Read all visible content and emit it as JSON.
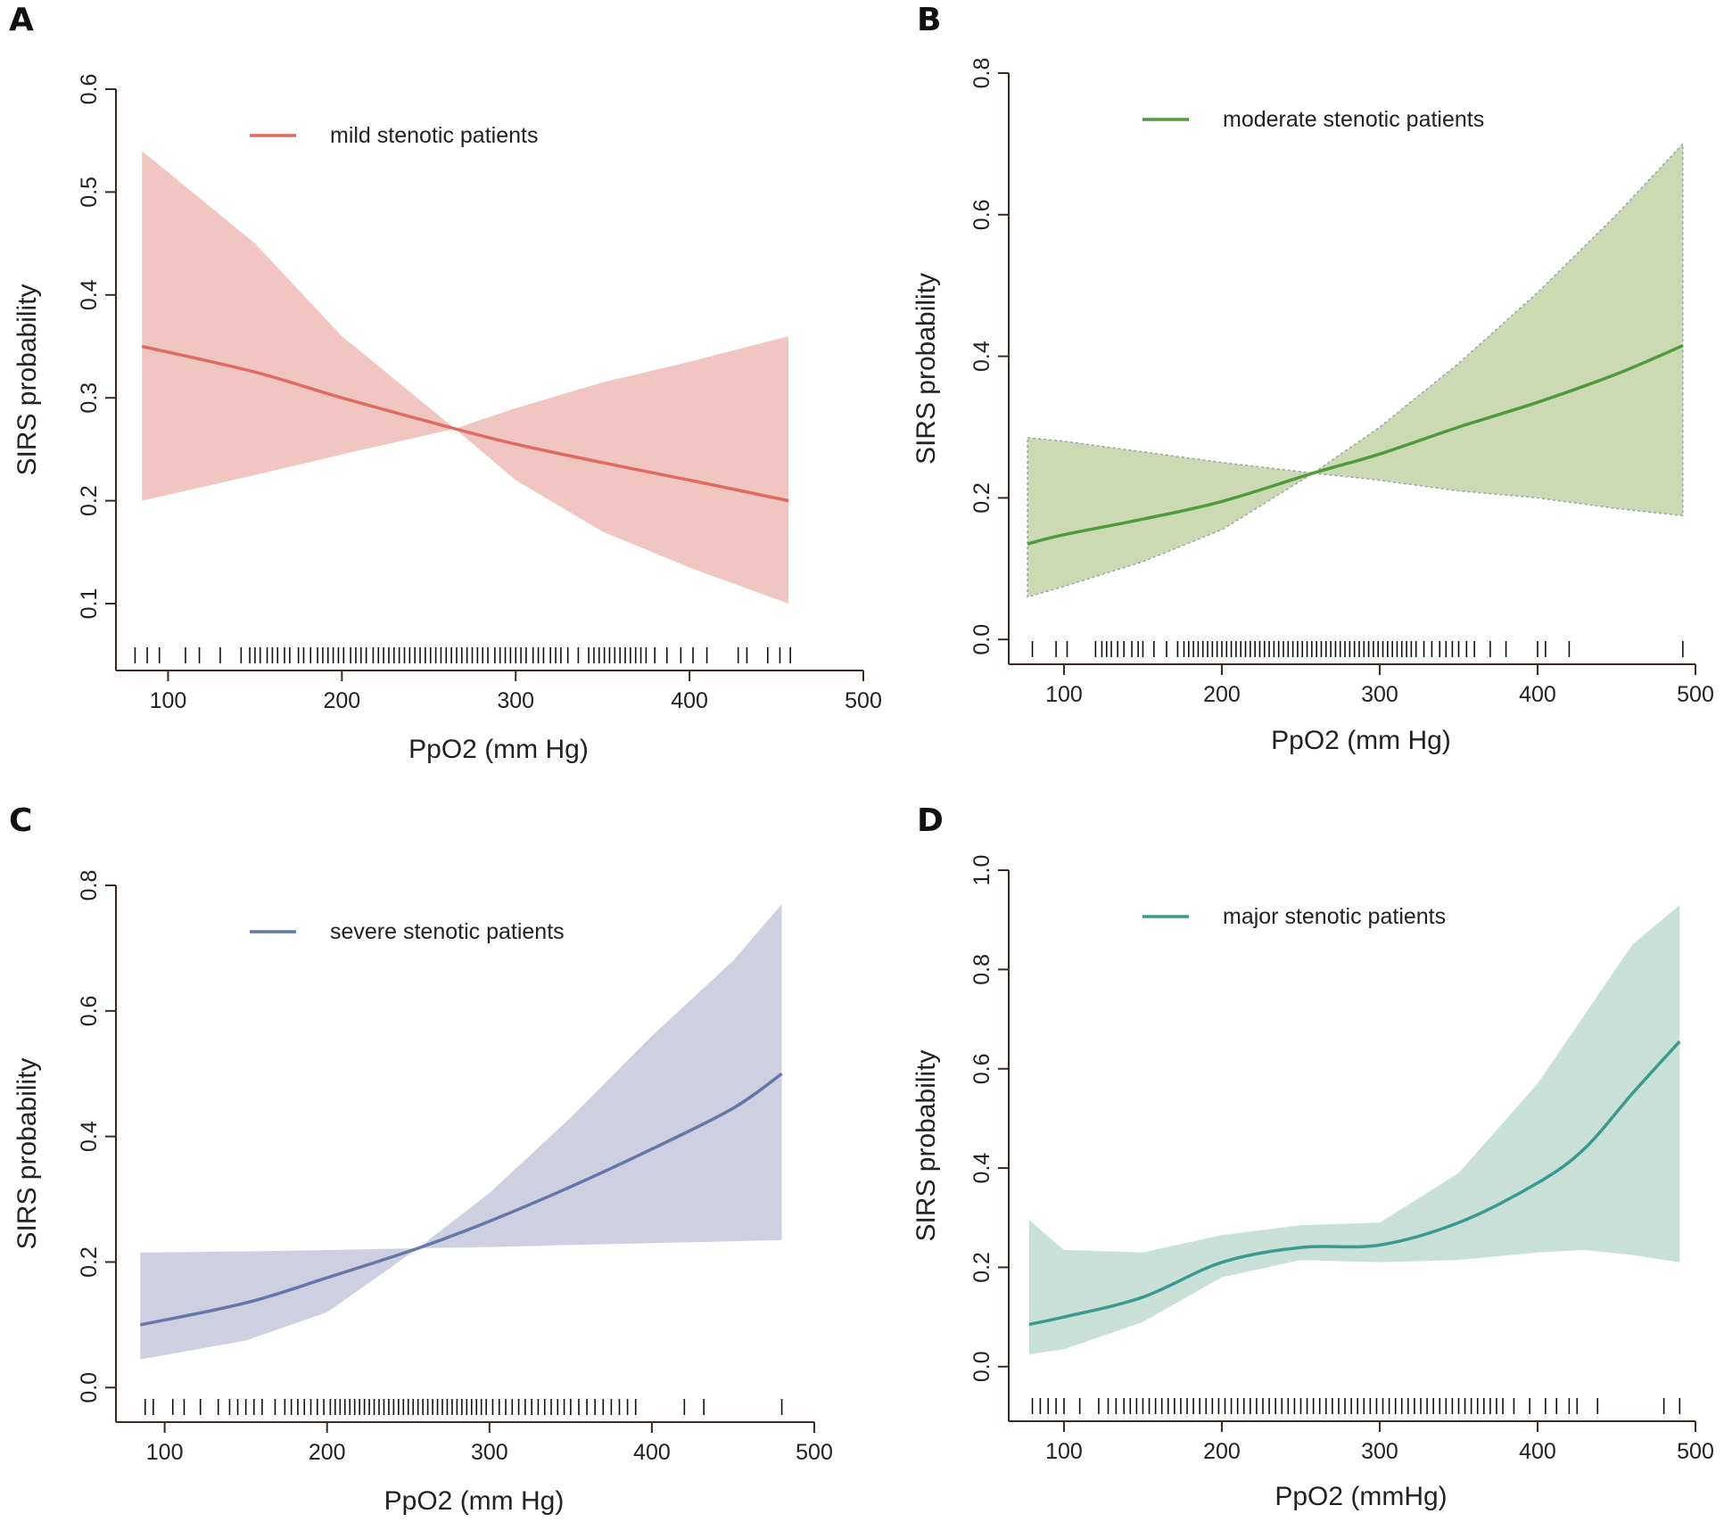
{
  "chart_data": [
    {
      "panel": "A",
      "type": "line",
      "title": "",
      "xlabel": "PpO2 (mm Hg)",
      "ylabel": "SIRS probability",
      "xlim": [
        70,
        500
      ],
      "ylim": [
        0.035,
        0.6
      ],
      "xticks": [
        "100",
        "200",
        "300",
        "400",
        "500"
      ],
      "yticks": [
        "0.1",
        "0.2",
        "0.3",
        "0.4",
        "0.5",
        "0.6"
      ],
      "legend": "mild stenotic patients",
      "legend_position": "top",
      "line_color": "#e06a60",
      "band_color": "#f2c6c0",
      "band_dashed": false,
      "series": [
        {
          "name": "mild stenotic patients",
          "x": [
            85,
            150,
            200,
            265,
            300,
            350,
            400,
            457
          ],
          "values": [
            0.35,
            0.325,
            0.3,
            0.27,
            0.255,
            0.237,
            0.22,
            0.2
          ],
          "lower": [
            0.2,
            0.225,
            0.245,
            0.27,
            0.22,
            0.17,
            0.135,
            0.1
          ],
          "upper": [
            0.54,
            0.45,
            0.36,
            0.27,
            0.29,
            0.315,
            0.335,
            0.36
          ]
        }
      ],
      "rug": [
        81,
        88,
        95,
        110,
        118,
        130,
        142,
        147,
        150,
        153,
        157,
        160,
        163,
        167,
        170,
        175,
        178,
        182,
        186,
        189,
        192,
        195,
        198,
        201,
        205,
        208,
        211,
        214,
        218,
        221,
        224,
        227,
        230,
        233,
        236,
        239,
        242,
        245,
        248,
        251,
        254,
        257,
        260,
        263,
        266,
        269,
        272,
        275,
        278,
        281,
        284,
        288,
        291,
        294,
        297,
        300,
        303,
        306,
        310,
        313,
        316,
        320,
        323,
        326,
        330,
        336,
        342,
        345,
        348,
        351,
        354,
        357,
        360,
        363,
        366,
        369,
        372,
        375,
        380,
        387,
        395,
        402,
        410,
        428,
        433,
        445,
        452,
        458
      ]
    },
    {
      "panel": "B",
      "type": "line",
      "title": "",
      "xlabel": "PpO2 (mm Hg)",
      "ylabel": "SIRS probability",
      "xlim": [
        65,
        500
      ],
      "ylim": [
        -0.035,
        0.8
      ],
      "xticks": [
        "100",
        "200",
        "300",
        "400",
        "500"
      ],
      "yticks": [
        "0.0",
        "0.2",
        "0.4",
        "0.6",
        "0.8"
      ],
      "legend": "moderate stenotic patients",
      "legend_position": "top-left",
      "line_color": "#4e9a3d",
      "band_color": "#cbdab3",
      "band_dashed": true,
      "series": [
        {
          "name": "moderate stenotic patients",
          "x": [
            77,
            100,
            150,
            200,
            258,
            300,
            350,
            400,
            450,
            492
          ],
          "values": [
            0.135,
            0.148,
            0.17,
            0.195,
            0.235,
            0.262,
            0.3,
            0.335,
            0.375,
            0.415
          ],
          "lower": [
            0.06,
            0.075,
            0.11,
            0.155,
            0.235,
            0.225,
            0.21,
            0.2,
            0.185,
            0.175
          ],
          "upper": [
            0.285,
            0.28,
            0.265,
            0.25,
            0.235,
            0.3,
            0.39,
            0.49,
            0.6,
            0.7
          ]
        }
      ],
      "rug": [
        80,
        95,
        102,
        120,
        124,
        127,
        130,
        134,
        138,
        143,
        147,
        150,
        157,
        165,
        172,
        176,
        179,
        182,
        185,
        188,
        191,
        194,
        197,
        200,
        203,
        206,
        209,
        212,
        215,
        218,
        221,
        224,
        227,
        230,
        233,
        236,
        239,
        242,
        245,
        248,
        251,
        254,
        257,
        260,
        263,
        266,
        269,
        272,
        275,
        278,
        281,
        284,
        287,
        290,
        293,
        296,
        299,
        302,
        305,
        308,
        311,
        314,
        317,
        320,
        323,
        328,
        333,
        338,
        342,
        346,
        350,
        355,
        360,
        370,
        380,
        400,
        405,
        420,
        492
      ]
    },
    {
      "panel": "C",
      "type": "line",
      "title": "",
      "xlabel": "PpO2 (mm Hg)",
      "ylabel": "SIRS probability",
      "xlim": [
        70,
        500
      ],
      "ylim": [
        -0.055,
        0.8
      ],
      "xticks": [
        "100",
        "200",
        "300",
        "400",
        "500"
      ],
      "yticks": [
        "0.0",
        "0.2",
        "0.4",
        "0.6",
        "0.8"
      ],
      "legend": "severe stenotic patients",
      "legend_position": "top-left",
      "line_color": "#6477ab",
      "band_color": "#cfcfe2",
      "band_dashed": false,
      "series": [
        {
          "name": "severe stenotic patients",
          "x": [
            85,
            150,
            200,
            256,
            300,
            350,
            400,
            450,
            480
          ],
          "values": [
            0.1,
            0.135,
            0.175,
            0.222,
            0.265,
            0.32,
            0.38,
            0.445,
            0.5
          ],
          "lower": [
            0.045,
            0.075,
            0.12,
            0.222,
            0.224,
            0.227,
            0.23,
            0.233,
            0.235
          ],
          "upper": [
            0.215,
            0.217,
            0.219,
            0.222,
            0.31,
            0.43,
            0.56,
            0.68,
            0.77
          ]
        }
      ],
      "rug": [
        88,
        93,
        105,
        112,
        122,
        133,
        140,
        145,
        150,
        155,
        160,
        168,
        174,
        178,
        182,
        186,
        190,
        194,
        198,
        202,
        205,
        208,
        211,
        214,
        217,
        220,
        223,
        226,
        229,
        232,
        235,
        238,
        241,
        244,
        247,
        250,
        253,
        256,
        259,
        262,
        265,
        268,
        271,
        274,
        277,
        280,
        283,
        286,
        289,
        292,
        295,
        298,
        302,
        306,
        310,
        314,
        318,
        322,
        326,
        330,
        334,
        338,
        342,
        346,
        350,
        355,
        360,
        365,
        370,
        375,
        380,
        385,
        390,
        420,
        432,
        480
      ]
    },
    {
      "panel": "D",
      "type": "line",
      "title": "",
      "xlabel": "PpO2 (mmHg)",
      "ylabel": "SIRS probability",
      "xlim": [
        65,
        500
      ],
      "ylim": [
        -0.11,
        1.0
      ],
      "xticks": [
        "100",
        "200",
        "300",
        "400",
        "500"
      ],
      "yticks": [
        "0.0",
        "0.2",
        "0.4",
        "0.6",
        "0.8",
        "1.0"
      ],
      "legend": "major stenotic patients",
      "legend_position": "top-left",
      "line_color": "#3a9990",
      "band_color": "#c9e0d8",
      "band_dashed": false,
      "series": [
        {
          "name": "major stenotic patients",
          "x": [
            78,
            100,
            150,
            200,
            250,
            300,
            350,
            400,
            430,
            460,
            490
          ],
          "values": [
            0.085,
            0.1,
            0.14,
            0.21,
            0.24,
            0.245,
            0.29,
            0.37,
            0.44,
            0.55,
            0.655
          ],
          "lower": [
            0.025,
            0.035,
            0.09,
            0.18,
            0.215,
            0.21,
            0.215,
            0.23,
            0.235,
            0.225,
            0.21
          ],
          "upper": [
            0.295,
            0.235,
            0.23,
            0.265,
            0.285,
            0.29,
            0.39,
            0.57,
            0.71,
            0.85,
            0.93
          ]
        }
      ],
      "rug": [
        80,
        85,
        90,
        95,
        100,
        110,
        122,
        128,
        133,
        138,
        142,
        146,
        150,
        154,
        158,
        162,
        166,
        170,
        174,
        178,
        182,
        186,
        190,
        194,
        198,
        202,
        206,
        210,
        214,
        218,
        222,
        226,
        230,
        234,
        238,
        242,
        246,
        250,
        254,
        258,
        262,
        266,
        270,
        274,
        278,
        282,
        286,
        290,
        294,
        298,
        302,
        306,
        310,
        314,
        318,
        322,
        326,
        330,
        334,
        338,
        342,
        346,
        350,
        354,
        358,
        362,
        366,
        370,
        374,
        378,
        385,
        395,
        405,
        412,
        420,
        425,
        438,
        480,
        490
      ]
    }
  ]
}
